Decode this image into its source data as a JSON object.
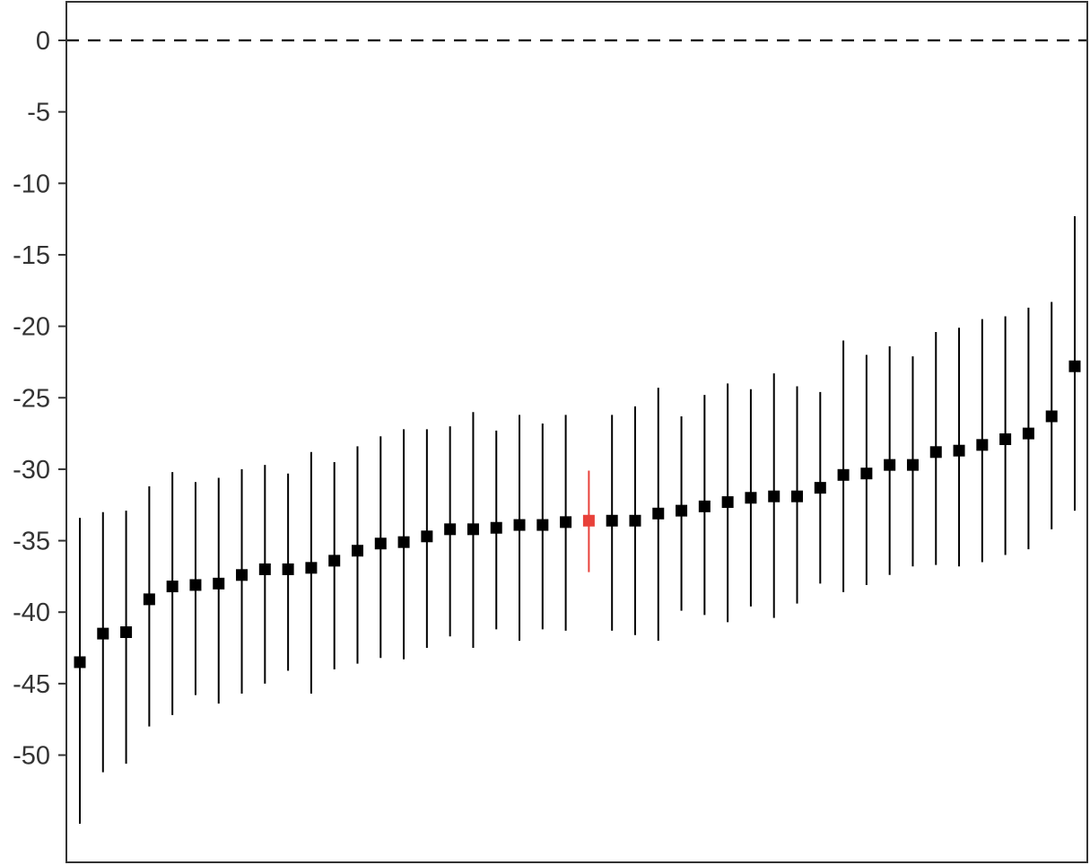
{
  "chart_data": {
    "type": "scatter",
    "title": "",
    "xlabel": "",
    "ylabel": "",
    "ylim": [
      -57.5,
      2.7
    ],
    "y_ticks": [
      0,
      -5,
      -10,
      -15,
      -20,
      -25,
      -30,
      -35,
      -40,
      -45,
      -50
    ],
    "y_tick_labels": [
      "0",
      "-5",
      "-10",
      "-15",
      "-20",
      "-25",
      "-30",
      "-35",
      "-40",
      "-45",
      "-50"
    ],
    "reference_line": {
      "y": 0,
      "style": "dashed"
    },
    "grid": false,
    "legend": "none",
    "point_color": "#000000",
    "highlight_color": "#e8413a",
    "highlight_index": 22,
    "points": [
      {
        "x": 1,
        "y": -43.5,
        "low": -54.8,
        "high": -33.4
      },
      {
        "x": 2,
        "y": -41.5,
        "low": -51.2,
        "high": -33.0
      },
      {
        "x": 3,
        "y": -41.4,
        "low": -50.6,
        "high": -32.9
      },
      {
        "x": 4,
        "y": -39.1,
        "low": -48.0,
        "high": -31.2
      },
      {
        "x": 5,
        "y": -38.2,
        "low": -47.2,
        "high": -30.2
      },
      {
        "x": 6,
        "y": -38.1,
        "low": -45.8,
        "high": -30.9
      },
      {
        "x": 7,
        "y": -38.0,
        "low": -46.4,
        "high": -30.6
      },
      {
        "x": 8,
        "y": -37.4,
        "low": -45.7,
        "high": -30.0
      },
      {
        "x": 9,
        "y": -37.0,
        "low": -45.0,
        "high": -29.7
      },
      {
        "x": 10,
        "y": -37.0,
        "low": -44.1,
        "high": -30.3
      },
      {
        "x": 11,
        "y": -36.9,
        "low": -45.7,
        "high": -28.8
      },
      {
        "x": 12,
        "y": -36.4,
        "low": -44.0,
        "high": -29.5
      },
      {
        "x": 13,
        "y": -35.7,
        "low": -43.6,
        "high": -28.4
      },
      {
        "x": 14,
        "y": -35.2,
        "low": -43.2,
        "high": -27.7
      },
      {
        "x": 15,
        "y": -35.1,
        "low": -43.3,
        "high": -27.2
      },
      {
        "x": 16,
        "y": -34.7,
        "low": -42.5,
        "high": -27.2
      },
      {
        "x": 17,
        "y": -34.2,
        "low": -41.7,
        "high": -27.0
      },
      {
        "x": 18,
        "y": -34.2,
        "low": -42.5,
        "high": -26.0
      },
      {
        "x": 19,
        "y": -34.1,
        "low": -41.2,
        "high": -27.3
      },
      {
        "x": 20,
        "y": -33.9,
        "low": -42.0,
        "high": -26.2
      },
      {
        "x": 21,
        "y": -33.9,
        "low": -41.2,
        "high": -26.8
      },
      {
        "x": 22,
        "y": -33.7,
        "low": -41.3,
        "high": -26.2
      },
      {
        "x": 23,
        "y": -33.6,
        "low": -37.2,
        "high": -30.1
      },
      {
        "x": 24,
        "y": -33.6,
        "low": -41.3,
        "high": -26.2
      },
      {
        "x": 25,
        "y": -33.6,
        "low": -41.6,
        "high": -25.6
      },
      {
        "x": 26,
        "y": -33.1,
        "low": -42.0,
        "high": -24.3
      },
      {
        "x": 27,
        "y": -32.9,
        "low": -39.9,
        "high": -26.3
      },
      {
        "x": 28,
        "y": -32.6,
        "low": -40.2,
        "high": -24.8
      },
      {
        "x": 29,
        "y": -32.3,
        "low": -40.7,
        "high": -24.0
      },
      {
        "x": 30,
        "y": -32.0,
        "low": -39.6,
        "high": -24.4
      },
      {
        "x": 31,
        "y": -31.9,
        "low": -40.4,
        "high": -23.3
      },
      {
        "x": 32,
        "y": -31.9,
        "low": -39.4,
        "high": -24.2
      },
      {
        "x": 33,
        "y": -31.3,
        "low": -38.0,
        "high": -24.6
      },
      {
        "x": 34,
        "y": -30.4,
        "low": -38.6,
        "high": -21.0
      },
      {
        "x": 35,
        "y": -30.3,
        "low": -38.1,
        "high": -22.0
      },
      {
        "x": 36,
        "y": -29.7,
        "low": -37.4,
        "high": -21.4
      },
      {
        "x": 37,
        "y": -29.7,
        "low": -36.8,
        "high": -22.1
      },
      {
        "x": 38,
        "y": -28.8,
        "low": -36.7,
        "high": -20.4
      },
      {
        "x": 39,
        "y": -28.7,
        "low": -36.8,
        "high": -20.1
      },
      {
        "x": 40,
        "y": -28.3,
        "low": -36.5,
        "high": -19.5
      },
      {
        "x": 41,
        "y": -27.9,
        "low": -36.0,
        "high": -19.3
      },
      {
        "x": 42,
        "y": -27.5,
        "low": -35.6,
        "high": -18.7
      },
      {
        "x": 43,
        "y": -26.3,
        "low": -34.2,
        "high": -18.3
      },
      {
        "x": 44,
        "y": -22.8,
        "low": -32.9,
        "high": -12.3
      }
    ]
  }
}
